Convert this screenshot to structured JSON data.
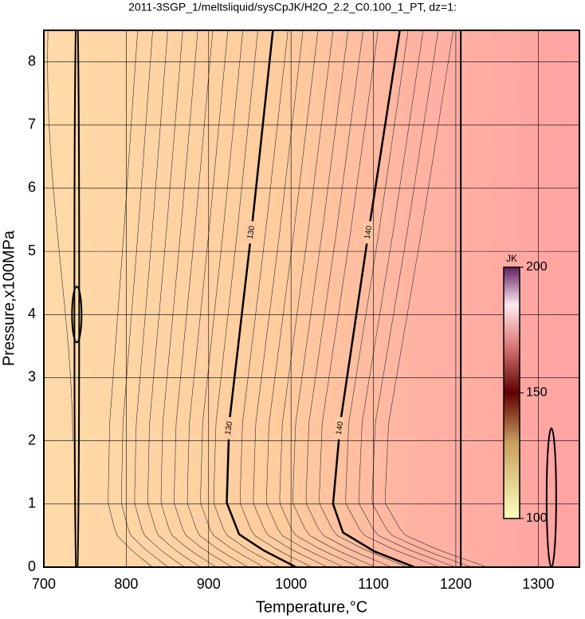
{
  "chart_data": {
    "type": "contour",
    "title": "2011-3SGP_1/meltsliquid/sysCpJK/H2O_2.2_C0.100_1_PT, dz=1:",
    "x_label": "Temperature,°C",
    "y_label": "Pressure,x100MPa",
    "xlim": [
      700,
      1350
    ],
    "ylim": [
      0,
      8.5
    ],
    "xticks": [
      700,
      800,
      900,
      1000,
      1100,
      1200,
      1300
    ],
    "yticks": [
      0,
      1,
      2,
      3,
      4,
      5,
      6,
      7,
      8
    ],
    "grid": true,
    "contours": [
      {
        "label": "130",
        "x": [
          1006,
          966,
          937,
          922,
          925,
          952,
          978
        ],
        "y": [
          0,
          0.27,
          0.52,
          1.02,
          2.28,
          5.32,
          8.5
        ]
      },
      {
        "label": "140",
        "x": [
          1150,
          1101,
          1063,
          1051,
          1060,
          1094,
          1132
        ],
        "y": [
          0,
          0.25,
          0.55,
          1.0,
          2.3,
          5.3,
          8.5
        ]
      }
    ],
    "colorbar": {
      "label": "JK",
      "lim": [
        100,
        200
      ],
      "ticks": [
        100,
        150,
        200
      ]
    }
  }
}
